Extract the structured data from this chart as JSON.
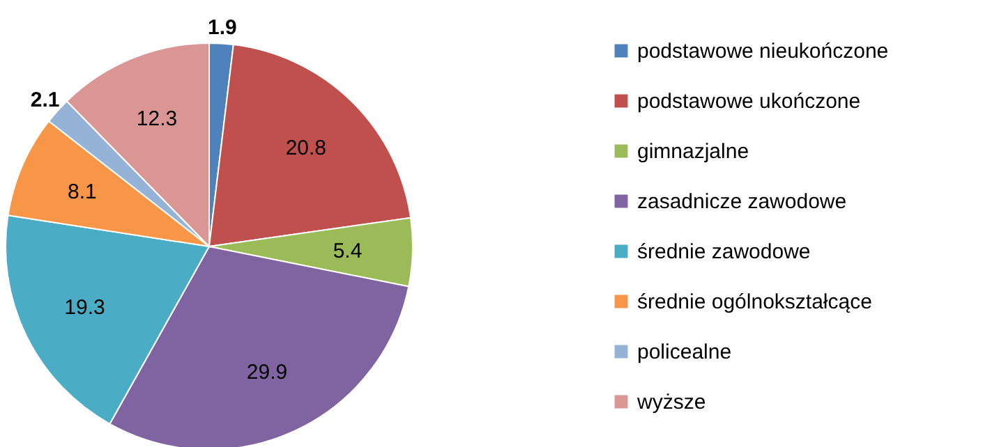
{
  "chart_data": {
    "type": "pie",
    "categories": [
      "podstawowe nieukończone",
      "podstawowe ukończone",
      "gimnazjalne",
      "zasadnicze zawodowe",
      "średnie zawodowe",
      "średnie ogólnokształcące",
      "policealne",
      "wyższe"
    ],
    "values": [
      1.9,
      20.8,
      5.4,
      29.9,
      19.3,
      8.1,
      2.1,
      12.3
    ],
    "colors": [
      "#4f81bd",
      "#c0504d",
      "#9bbb59",
      "#8064a2",
      "#4bacc6",
      "#f79646",
      "#95b3d7",
      "#d99694"
    ],
    "data_labels": true,
    "legend": "right"
  }
}
